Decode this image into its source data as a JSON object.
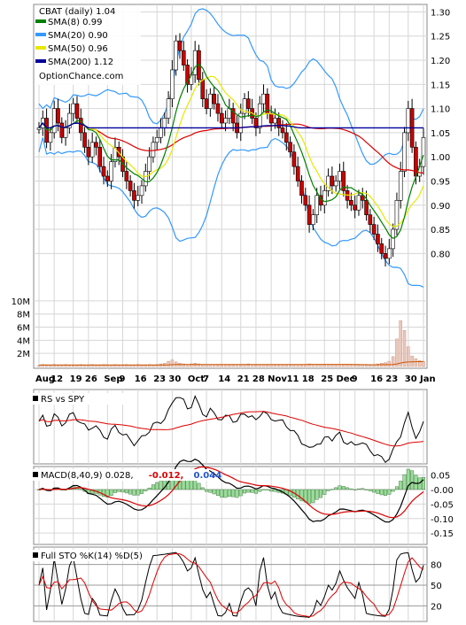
{
  "chart_data": [
    {
      "type": "candlestick",
      "panel": "price",
      "title": "CBAT (daily) 1.04",
      "watermark": "OptionChance.com",
      "legend": [
        {
          "label": "SMA(8) 0.99",
          "color": "#008000"
        },
        {
          "label": "SMA(20) 0.90",
          "color": "#3399ff"
        },
        {
          "label": "SMA(50) 0.96",
          "color": "#e8e800"
        },
        {
          "label": "SMA(200) 1.12",
          "color": "#000099"
        }
      ],
      "legend_position": "top-left",
      "ylim": [
        0.72,
        1.31
      ],
      "y_ticks": [
        "0.80",
        "0.85",
        "0.90",
        "0.95",
        "1.00",
        "1.05",
        "1.10",
        "1.15",
        "1.20",
        "1.25",
        "1.30"
      ],
      "x_labels": [
        "Aug",
        "12",
        "19",
        "26",
        "Sep",
        "9",
        "16",
        "23",
        "30",
        "Oct",
        "7",
        "14",
        "21",
        "28",
        "Nov",
        "11",
        "18",
        "25",
        "Dec",
        "9",
        "16",
        "23",
        "30",
        "Jan"
      ],
      "close": [
        1.06,
        1.08,
        1.03,
        1.05,
        1.1,
        1.07,
        1.04,
        1.06,
        1.09,
        1.11,
        1.08,
        1.05,
        1.02,
        1.0,
        1.03,
        1.02,
        0.98,
        0.96,
        0.95,
        0.99,
        1.02,
        1.0,
        0.97,
        0.95,
        0.93,
        0.91,
        0.92,
        0.94,
        0.97,
        1.0,
        1.03,
        1.04,
        1.06,
        1.08,
        1.12,
        1.18,
        1.24,
        1.22,
        1.19,
        1.15,
        1.17,
        1.22,
        1.16,
        1.12,
        1.1,
        1.13,
        1.11,
        1.09,
        1.07,
        1.08,
        1.1,
        1.07,
        1.05,
        1.09,
        1.12,
        1.1,
        1.08,
        1.06,
        1.11,
        1.13,
        1.09,
        1.07,
        1.08,
        1.06,
        1.05,
        1.03,
        1.01,
        0.98,
        0.95,
        0.92,
        0.9,
        0.86,
        0.88,
        0.92,
        0.9,
        0.93,
        0.96,
        0.94,
        0.95,
        0.97,
        0.93,
        0.91,
        0.9,
        0.89,
        0.92,
        0.91,
        0.88,
        0.86,
        0.84,
        0.82,
        0.8,
        0.79,
        0.81,
        0.85,
        0.91,
        0.97,
        1.05,
        1.1,
        1.02,
        0.96,
        0.98,
        1.04
      ],
      "volume_ticks": [
        "2M",
        "4M",
        "6M",
        "8M",
        "10M"
      ],
      "volume_ylim": [
        0,
        11.6
      ],
      "volume_millions": [
        0.2,
        0.3,
        0.2,
        0.2,
        0.3,
        0.2,
        0.2,
        0.3,
        0.2,
        0.2,
        0.2,
        0.3,
        0.2,
        0.2,
        0.3,
        0.2,
        0.2,
        0.3,
        0.2,
        0.2,
        0.3,
        0.2,
        0.2,
        0.3,
        0.2,
        0.2,
        0.3,
        0.2,
        0.2,
        0.3,
        0.2,
        0.3,
        0.4,
        0.5,
        0.8,
        1.0,
        0.7,
        0.5,
        0.4,
        0.3,
        0.4,
        0.5,
        0.4,
        0.3,
        0.3,
        0.3,
        0.3,
        0.2,
        0.2,
        0.3,
        0.2,
        0.2,
        0.3,
        0.2,
        0.3,
        0.4,
        0.3,
        0.2,
        0.3,
        0.3,
        0.2,
        0.3,
        0.2,
        0.2,
        0.3,
        0.2,
        0.2,
        0.3,
        0.3,
        0.2,
        0.3,
        0.4,
        0.3,
        0.3,
        0.3,
        0.2,
        0.3,
        0.3,
        0.2,
        0.3,
        0.2,
        0.2,
        0.3,
        0.2,
        0.2,
        0.3,
        0.2,
        0.3,
        0.3,
        0.4,
        0.5,
        0.6,
        0.8,
        1.5,
        4.2,
        7.0,
        5.5,
        3.0,
        1.6,
        1.2,
        0.9,
        0.8
      ]
    },
    {
      "type": "line",
      "panel": "rs",
      "title": "RS vs SPY"
    },
    {
      "type": "bar+line",
      "panel": "macd",
      "title": "MACD(8,40,9) 0.028,",
      "title_values": [
        {
          "text": "-0.012,",
          "color": "#dd0000"
        },
        {
          "text": "0.044",
          "color": "#2255cc"
        }
      ],
      "ylim": [
        -0.18,
        0.07
      ],
      "y_ticks": [
        "0.05",
        "-0.00",
        "-0.05",
        "-0.10",
        "-0.15"
      ]
    },
    {
      "type": "line",
      "panel": "stochastic",
      "title": "Full STO %K(14) %D(5)",
      "ylim": [
        0,
        100
      ],
      "y_ticks": [
        "80",
        "50",
        "20"
      ]
    }
  ]
}
